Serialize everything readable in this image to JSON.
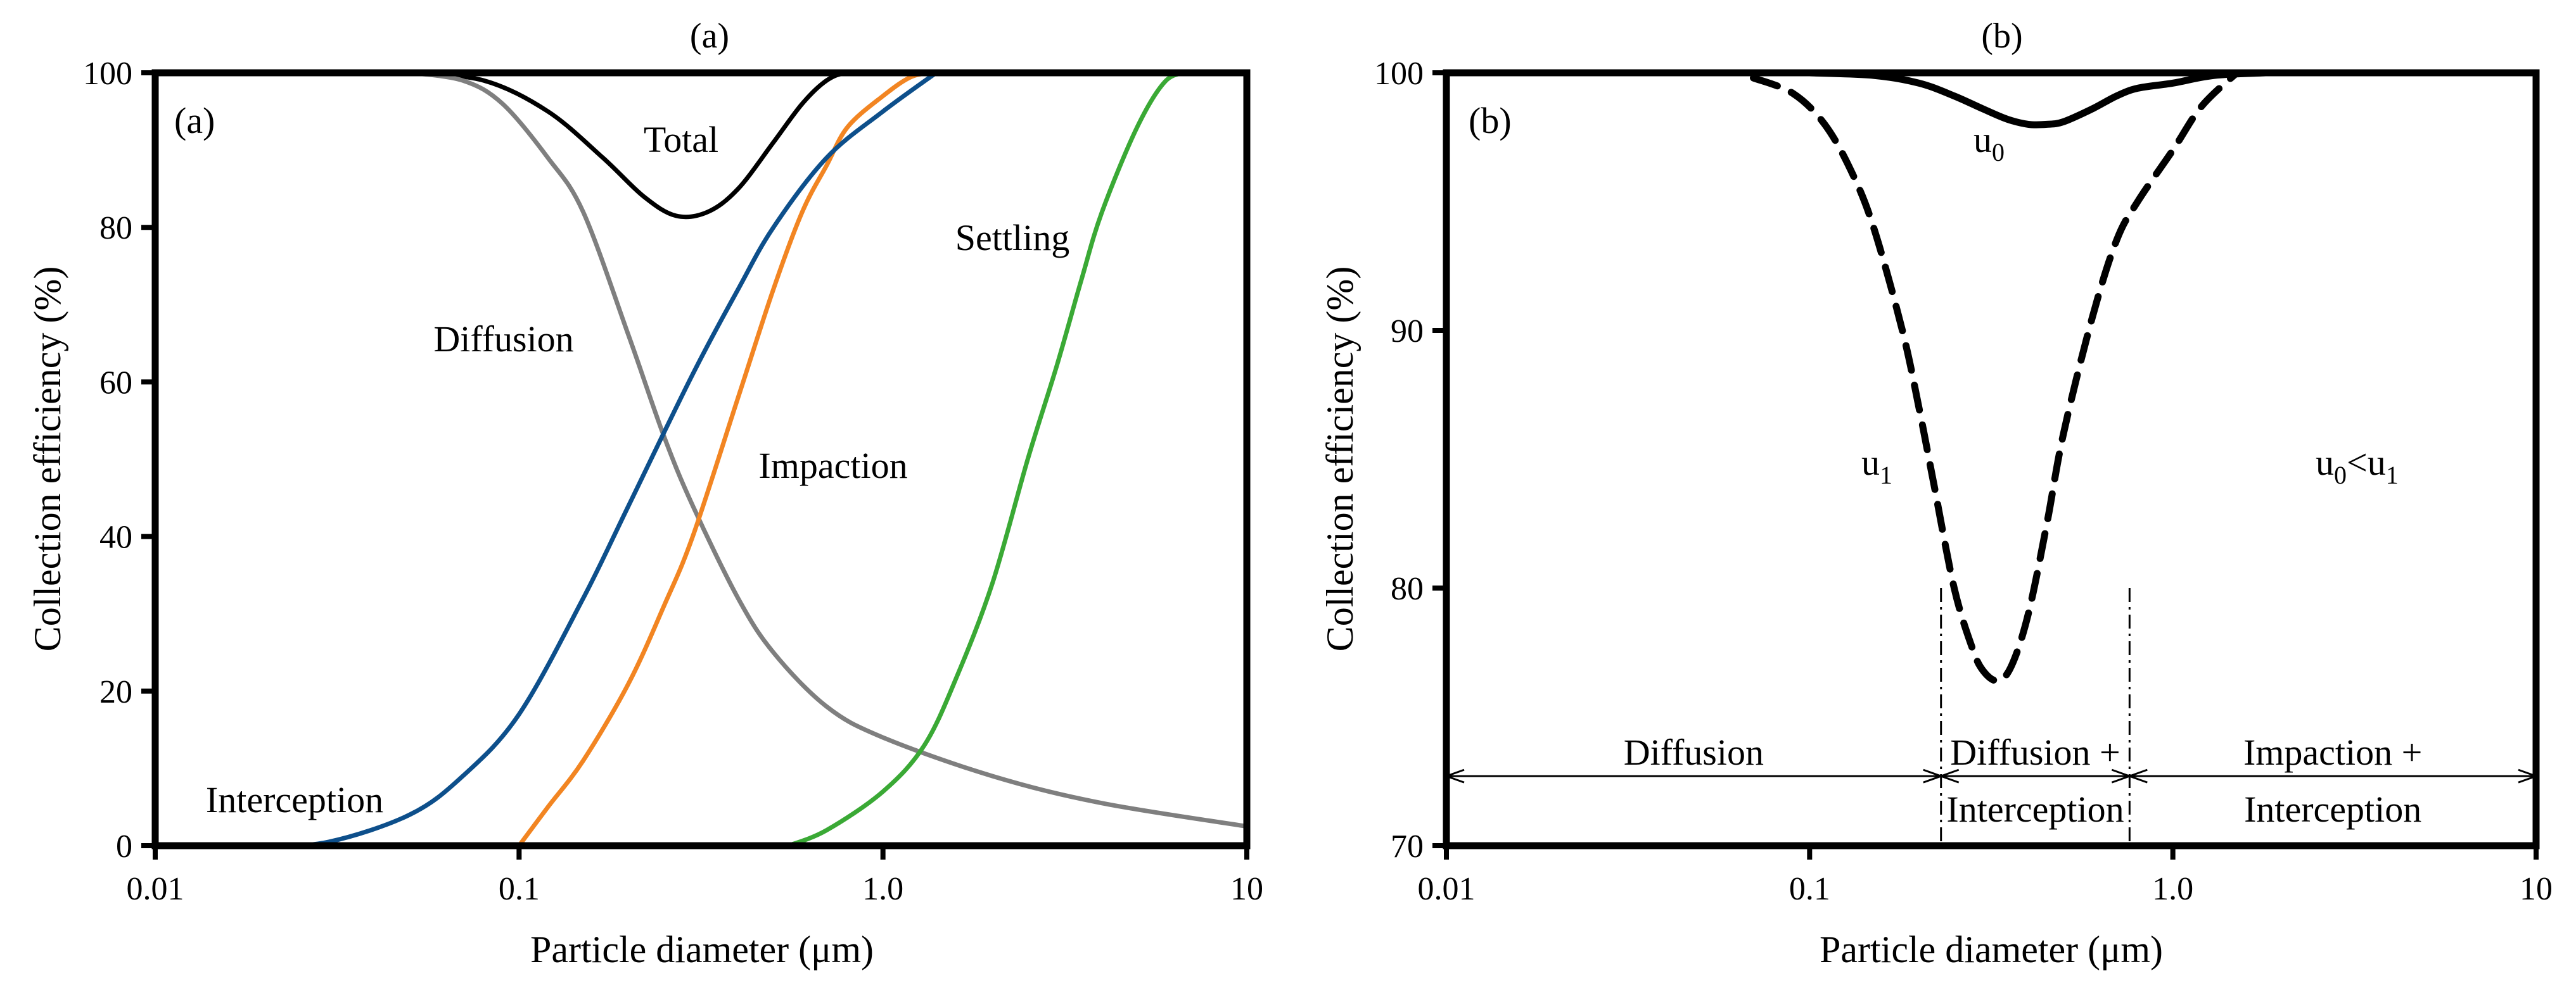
{
  "chart_data": [
    {
      "type": "line",
      "panel": "a",
      "title": "(a)",
      "inner_label": "(a)",
      "xlabel": "Particle diameter (μm)",
      "ylabel": "Collection efficiency (%)",
      "xscale": "log",
      "xlim": [
        0.01,
        10
      ],
      "ylim": [
        0,
        100
      ],
      "x_ticks": [
        0.01,
        0.1,
        1.0,
        10
      ],
      "x_tick_labels": [
        "0.01",
        "0.1",
        "1.0",
        "10"
      ],
      "y_ticks": [
        0,
        20,
        40,
        60,
        80,
        100
      ],
      "y_tick_labels": [
        "0",
        "20",
        "40",
        "60",
        "80",
        "100"
      ],
      "series": [
        {
          "name": "Total",
          "color": "#000000",
          "x": [
            0.05,
            0.08,
            0.12,
            0.17,
            0.22,
            0.27,
            0.33,
            0.4,
            0.5,
            0.6,
            0.7,
            0.8,
            1.0
          ],
          "y": [
            100,
            99,
            95,
            89,
            84,
            81.5,
            82,
            85,
            91,
            96,
            99,
            100,
            100
          ]
        },
        {
          "name": "Diffusion",
          "color": "#7f7f7f",
          "x": [
            0.05,
            0.07,
            0.09,
            0.12,
            0.15,
            0.2,
            0.25,
            0.3,
            0.4,
            0.5,
            0.7,
            1.0,
            2.0,
            4.0,
            10.0
          ],
          "y": [
            100,
            99,
            96,
            89,
            82,
            66,
            53,
            44,
            32,
            25,
            18,
            14,
            9,
            5.5,
            2.5
          ]
        },
        {
          "name": "Impaction",
          "color": "#f28522",
          "x": [
            0.1,
            0.12,
            0.15,
            0.2,
            0.25,
            0.3,
            0.4,
            0.5,
            0.6,
            0.7,
            0.8,
            1.0,
            1.2,
            1.4
          ],
          "y": [
            0,
            5,
            11,
            21,
            31,
            40,
            58,
            72,
            82,
            88,
            93,
            97,
            99.5,
            100
          ]
        },
        {
          "name": "Interception",
          "color": "#0d4f8b",
          "x": [
            0.01,
            0.02,
            0.03,
            0.05,
            0.07,
            0.1,
            0.15,
            0.2,
            0.3,
            0.4,
            0.5,
            0.7,
            1.0,
            1.4
          ],
          "y": [
            0,
            0,
            0.5,
            4,
            9,
            17,
            32,
            44,
            61,
            72,
            80,
            89,
            95,
            100
          ]
        },
        {
          "name": "Settling",
          "color": "#3aa935",
          "x": [
            0.55,
            0.7,
            1.0,
            1.3,
            1.6,
            2.0,
            2.5,
            3.0,
            3.5,
            4.0,
            5.0,
            6.0,
            7.0
          ],
          "y": [
            0,
            2,
            7,
            13,
            22,
            34,
            50,
            62,
            73,
            82,
            93,
            99,
            100
          ]
        }
      ],
      "annotations": [
        "Total",
        "Diffusion",
        "Impaction",
        "Settling",
        "Interception"
      ]
    },
    {
      "type": "line",
      "panel": "b",
      "title": "(b)",
      "inner_label": "(b)",
      "xlabel": "Particle diameter (μm)",
      "ylabel": "Collection efficiency (%)",
      "xscale": "log",
      "xlim": [
        0.01,
        10
      ],
      "ylim": [
        70,
        100
      ],
      "x_ticks": [
        0.01,
        0.1,
        1.0,
        10
      ],
      "x_tick_labels": [
        "0.01",
        "0.1",
        "1.0",
        "10"
      ],
      "y_ticks": [
        70,
        80,
        90,
        100
      ],
      "y_tick_labels": [
        "70",
        "80",
        "90",
        "100"
      ],
      "series": [
        {
          "name": "u0",
          "label_main": "u",
          "label_sub": "0",
          "style": "solid",
          "color": "#000000",
          "x": [
            0.1,
            0.15,
            0.2,
            0.25,
            0.3,
            0.35,
            0.4,
            0.45,
            0.5,
            0.6,
            0.7,
            0.8,
            1.0,
            1.3,
            1.8
          ],
          "y": [
            100,
            99.9,
            99.6,
            99.1,
            98.6,
            98.2,
            98.0,
            98.0,
            98.1,
            98.6,
            99.1,
            99.4,
            99.6,
            99.9,
            100
          ]
        },
        {
          "name": "u1",
          "label_main": "u",
          "label_sub": "1",
          "style": "dashed",
          "color": "#000000",
          "x": [
            0.07,
            0.09,
            0.11,
            0.13,
            0.15,
            0.18,
            0.2,
            0.22,
            0.25,
            0.28,
            0.3,
            0.33,
            0.36,
            0.4,
            0.45,
            0.5,
            0.6,
            0.7,
            0.8,
            1.0,
            1.2,
            1.5
          ],
          "y": [
            99.8,
            99.2,
            98.0,
            96.2,
            94.0,
            90.0,
            87.0,
            84.0,
            80.0,
            77.7,
            76.8,
            76.4,
            77.0,
            79.0,
            82.5,
            86.0,
            90.5,
            93.5,
            95.0,
            97.0,
            98.7,
            100.0
          ]
        }
      ],
      "relation_label": {
        "left_main": "u",
        "left_sub": "0",
        "sep": "<",
        "right_main": "u",
        "right_sub": "1"
      },
      "dividers_x": [
        0.23,
        0.76
      ],
      "regions": [
        {
          "lines": [
            "Diffusion"
          ],
          "x_range": [
            0.01,
            0.23
          ]
        },
        {
          "lines": [
            "Diffusion +",
            "Interception"
          ],
          "x_range": [
            0.23,
            0.76
          ]
        },
        {
          "lines": [
            "Impaction +",
            "Interception"
          ],
          "x_range": [
            0.76,
            10
          ]
        }
      ]
    }
  ]
}
